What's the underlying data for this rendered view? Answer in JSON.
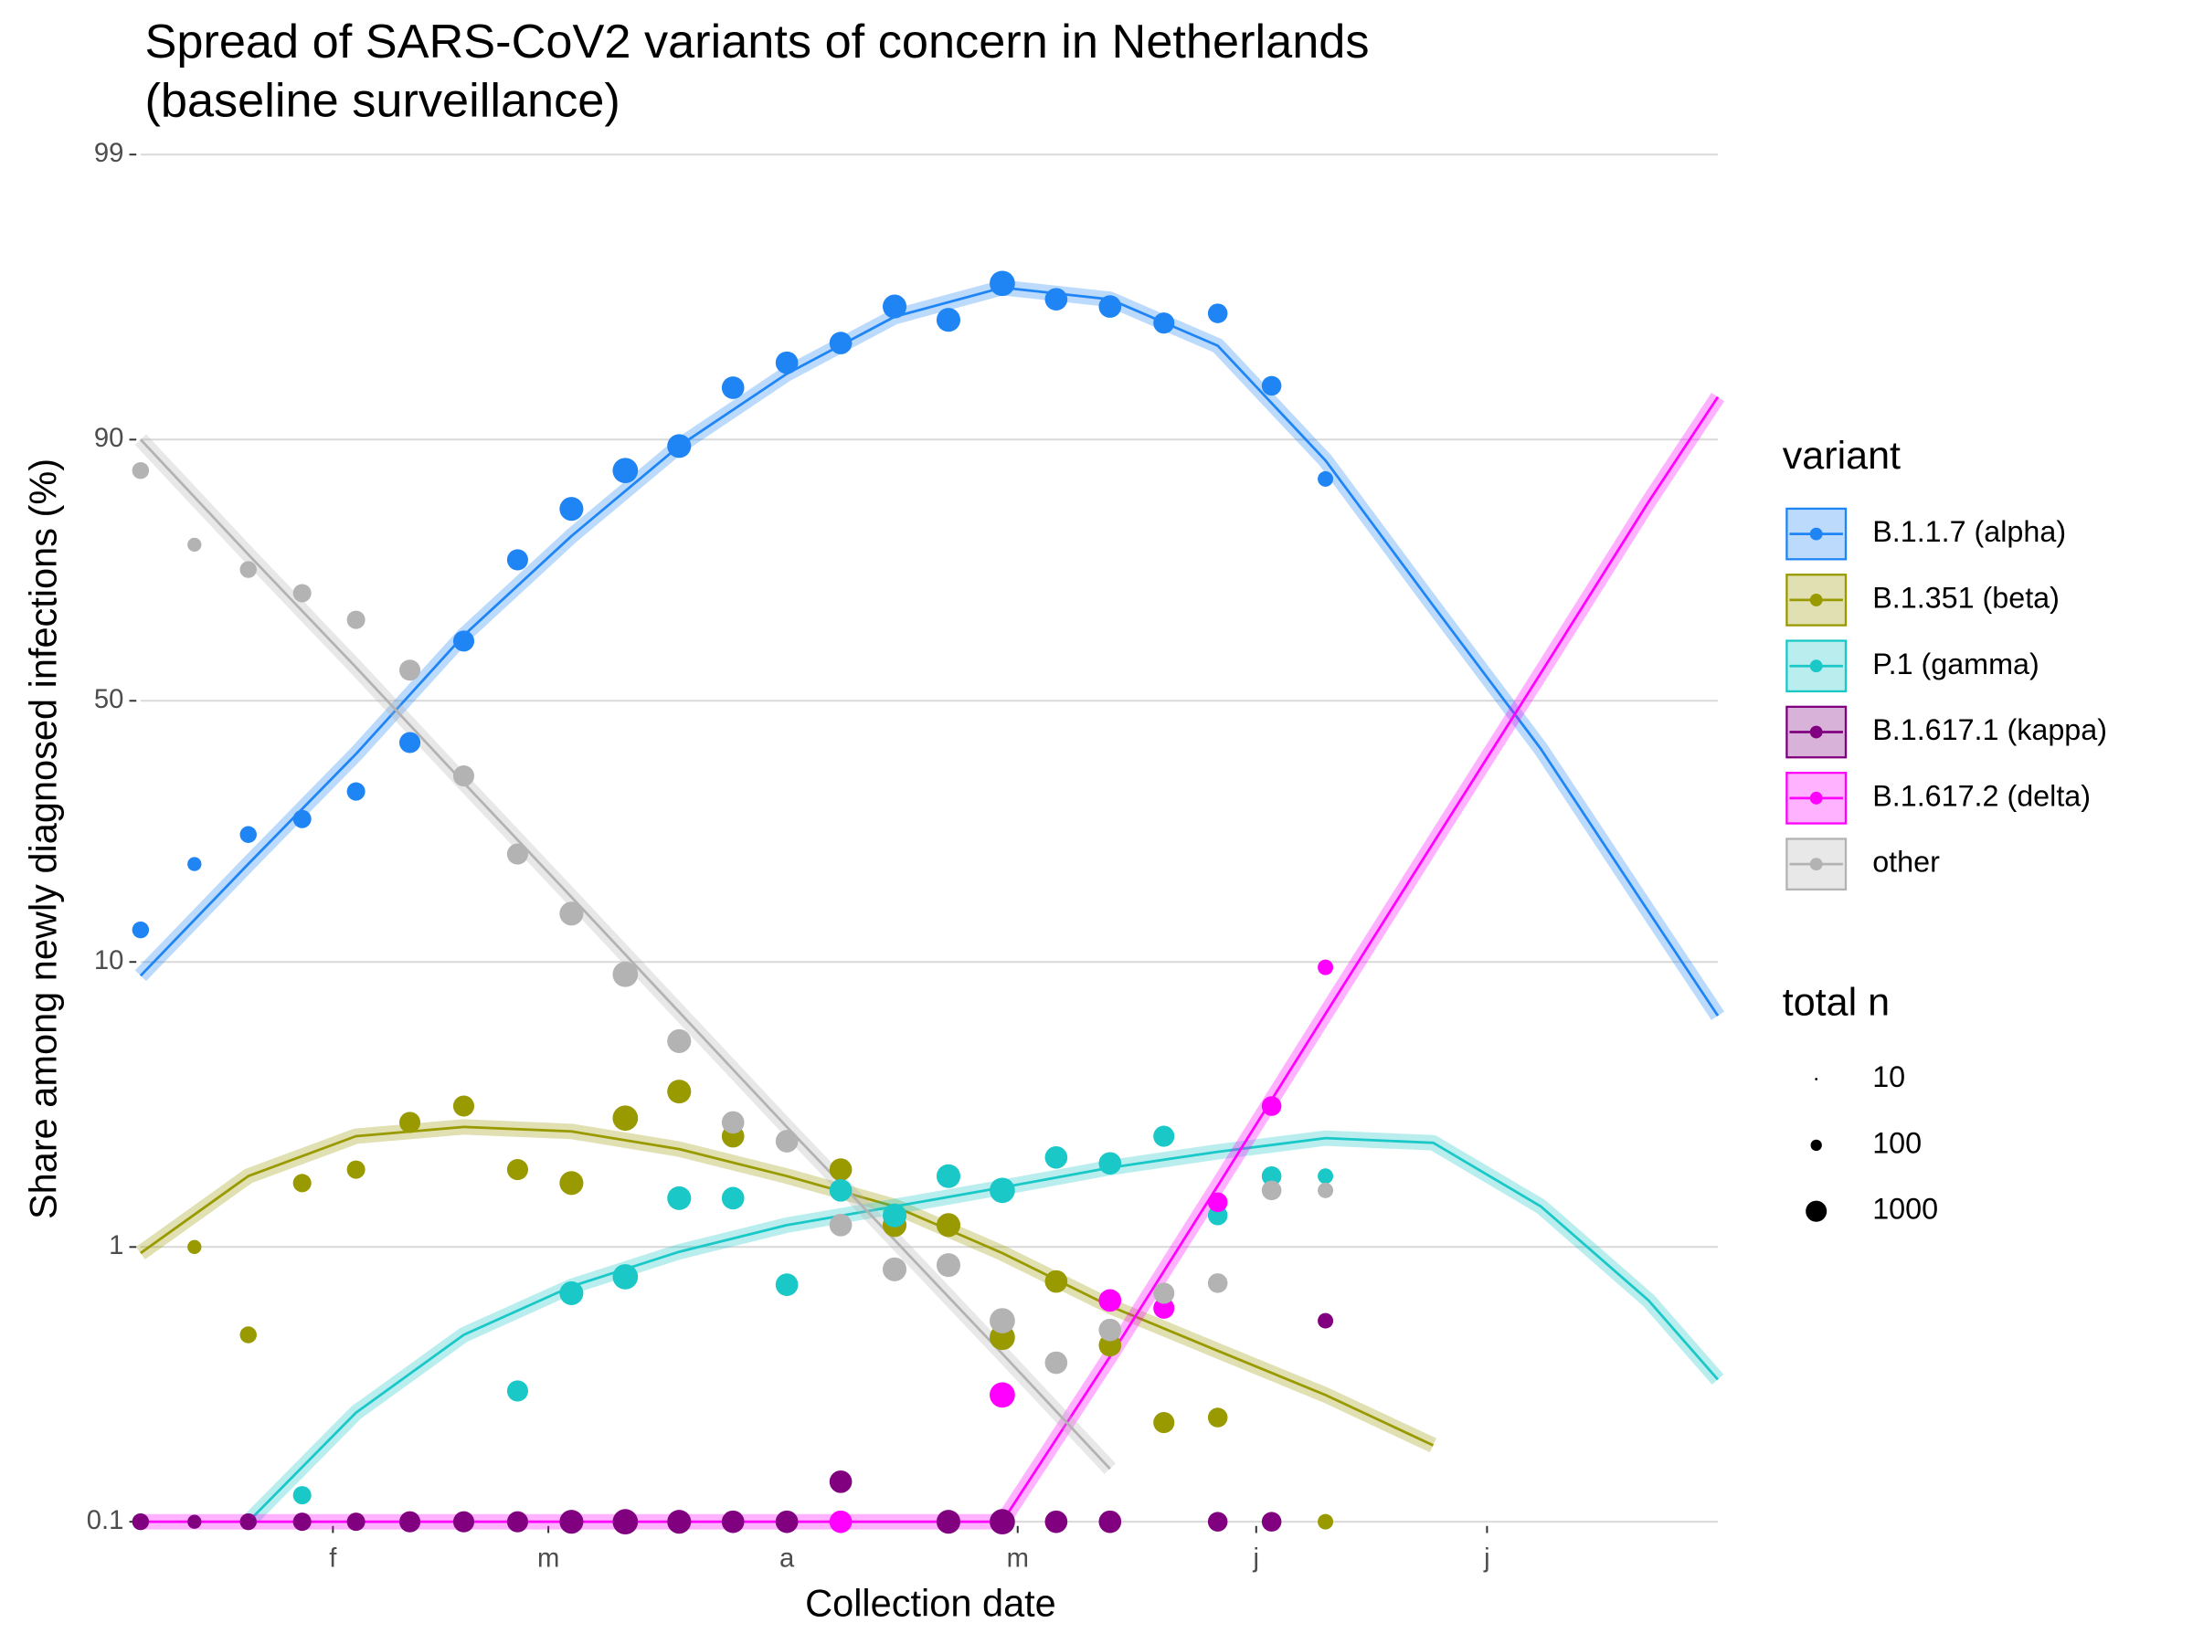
{
  "chart_data": {
    "type": "scatter",
    "title": [
      "Spread of SARS-CoV2 variants of concern in Netherlands",
      "(baseline surveillance)"
    ],
    "x_label": "Collection date",
    "y_label": "Share among newly diagnosed infections (%)",
    "y_scale": "logit",
    "grid": true,
    "legend_position": "right",
    "legend_title": "variant",
    "x": [
      7,
      14,
      21,
      28,
      35,
      42,
      49,
      56,
      63,
      70,
      77,
      84,
      91,
      98,
      105,
      112,
      119,
      126,
      133,
      140,
      147,
      154,
      161
    ],
    "fit_x": [
      7,
      21,
      35,
      49,
      63,
      77,
      91,
      105,
      119,
      133,
      147,
      161,
      175,
      189,
      203,
      212
    ],
    "size_title": "total n",
    "total_n": [
      370,
      190,
      370,
      520,
      520,
      1000,
      1000,
      1000,
      1900,
      2700,
      1900,
      1400,
      1400,
      1400,
      1900,
      1900,
      2700,
      1400,
      1400,
      1000,
      720,
      720,
      270
    ],
    "size_legend": [
      10,
      100,
      1000
    ],
    "xlim": [
      7,
      212
    ],
    "xticks": [
      {
        "value": 32,
        "label": "f"
      },
      {
        "value": 60,
        "label": "m"
      },
      {
        "value": 91,
        "label": "a"
      },
      {
        "value": 121,
        "label": "m"
      },
      {
        "value": 152,
        "label": "j"
      },
      {
        "value": 182,
        "label": "j"
      }
    ],
    "ylim": [
      0.1,
      99
    ],
    "yticks": [
      0.1,
      1,
      10,
      50,
      90,
      99
    ],
    "series": [
      {
        "name": "B.1.1.7 (alpha)",
        "color": "#1f85f5",
        "values": [
          12.7,
          20.2,
          24.5,
          27.0,
          31.8,
          41.3,
          62.3,
          76.6,
          83.4,
          87.4,
          89.5,
          93.3,
          94.5,
          95.3,
          96.5,
          96.1,
          97.1,
          96.7,
          96.5,
          96.0,
          96.3,
          93.4,
          86.6
        ],
        "fit": [
          9,
          20.2,
          39,
          63.4,
          80,
          89.5,
          94,
          96.2,
          97,
          96.7,
          95.2,
          88.3,
          69,
          40,
          14.5,
          6.6
        ]
      },
      {
        "name": "B.1.351 (beta)",
        "color": "#999900",
        "values": [
          null,
          1.0,
          0.48,
          1.7,
          1.9,
          2.8,
          3.2,
          1.9,
          1.7,
          2.9,
          3.6,
          2.5,
          null,
          1.9,
          1.2,
          1.2,
          0.47,
          0.75,
          0.44,
          0.23,
          0.24,
          null,
          0.1
        ],
        "fit": [
          0.95,
          1.8,
          2.5,
          2.7,
          2.6,
          2.25,
          1.8,
          1.4,
          0.95,
          0.61,
          0.42,
          0.29,
          0.19,
          null,
          null,
          null
        ]
      },
      {
        "name": "P.1 (gamma)",
        "color": "#1ac8c8",
        "values": [
          null,
          null,
          null,
          0.125,
          null,
          null,
          null,
          0.3,
          0.68,
          0.78,
          1.5,
          1.5,
          0.73,
          1.6,
          1.3,
          1.8,
          1.6,
          2.1,
          2.0,
          2.5,
          1.3,
          1.8,
          1.8
        ],
        "fit": [
          null,
          0.1,
          0.25,
          0.48,
          0.72,
          0.96,
          1.2,
          1.4,
          1.64,
          1.93,
          2.2,
          2.46,
          2.37,
          1.4,
          0.64,
          0.33
        ]
      },
      {
        "name": "B.1.617.1 (kappa)",
        "color": "#800080",
        "values": [
          0.1,
          0.1,
          0.1,
          0.1,
          0.1,
          0.1,
          0.1,
          0.1,
          0.1,
          0.1,
          0.1,
          0.1,
          0.1,
          0.14,
          null,
          0.1,
          0.1,
          0.1,
          0.1,
          null,
          0.1,
          0.1,
          0.54
        ]
      },
      {
        "name": "B.1.617.2 (delta)",
        "color": "#ff00ff",
        "values": [
          null,
          null,
          null,
          null,
          null,
          null,
          null,
          null,
          null,
          null,
          null,
          null,
          null,
          0.1,
          null,
          null,
          0.29,
          null,
          0.64,
          0.6,
          1.45,
          3.2,
          9.6
        ],
        "fit": [
          0.1,
          0.1,
          0.1,
          0.1,
          0.1,
          0.1,
          0.1,
          0.1,
          0.1,
          0.4,
          1.66,
          6.7,
          23.2,
          55.8,
          84.2,
          92.8
        ]
      },
      {
        "name": "other",
        "color": "#b3b3b3",
        "values": [
          87.4,
          78.8,
          75.1,
          71.2,
          66.4,
          56.4,
          34.7,
          21.6,
          14.3,
          9.1,
          5.4,
          2.8,
          2.4,
          1.2,
          0.83,
          0.86,
          0.54,
          0.38,
          0.5,
          0.68,
          0.74,
          1.6,
          1.6
        ],
        "fit": [
          90,
          77.4,
          57,
          33.4,
          16.1,
          6.8,
          2.7,
          1.06,
          0.41,
          0.156,
          null,
          null,
          null,
          null,
          null,
          null
        ]
      }
    ]
  }
}
